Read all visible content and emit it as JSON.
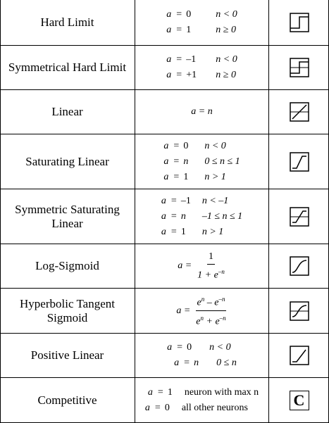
{
  "rows": [
    {
      "name": "Hard Limit",
      "lines": [
        [
          "a",
          "=",
          "0",
          "n < 0"
        ],
        [
          "a",
          "=",
          "1",
          "n ≥ 0"
        ]
      ],
      "icon": "hard-limit-icon"
    },
    {
      "name": "Symmetrical Hard Limit",
      "lines": [
        [
          "a",
          "=",
          "–1",
          "n < 0"
        ],
        [
          "a",
          "=",
          "+1",
          "n ≥ 0"
        ]
      ],
      "icon": "symmetrical-hard-limit-icon"
    },
    {
      "name": "Linear",
      "formula": "a = n",
      "icon": "linear-icon"
    },
    {
      "name": "Saturating Linear",
      "lines": [
        [
          "a",
          "=",
          "0",
          "n < 0"
        ],
        [
          "a",
          "=",
          "n",
          "0 ≤ n ≤ 1"
        ],
        [
          "a",
          "=",
          "1",
          "n > 1"
        ]
      ],
      "icon": "saturating-linear-icon"
    },
    {
      "name": "Symmetric Saturating Linear",
      "lines": [
        [
          "a",
          "=",
          "–1",
          "n < –1"
        ],
        [
          "a",
          "=",
          "n",
          "–1 ≤ n ≤ 1"
        ],
        [
          "a",
          "=",
          "1",
          "n > 1"
        ]
      ],
      "icon": "symmetric-saturating-linear-icon"
    },
    {
      "name": "Log-Sigmoid",
      "lhs": "a =",
      "num": "1",
      "den": "1 + e",
      "den_sup": "–n",
      "icon": "log-sigmoid-icon"
    },
    {
      "name": "Hyperbolic Tangent Sigmoid",
      "lhs": "a =",
      "num_a": "e",
      "num_a_sup": "n",
      "num_mid": " – e",
      "num_b_sup": "–n",
      "den_a": "e",
      "den_a_sup": "n",
      "den_mid": " + e",
      "den_b_sup": "–n",
      "icon": "hyperbolic-tangent-sigmoid-icon"
    },
    {
      "name": "Positive Linear",
      "lines": [
        [
          "a",
          "=",
          "0",
          "n < 0"
        ],
        [
          "a",
          "=",
          "n",
          "0 ≤ n"
        ]
      ],
      "icon": "positive-linear-icon"
    },
    {
      "name": "Competitive",
      "comp": [
        [
          "a",
          "=",
          "1",
          "neuron with max n"
        ],
        [
          "a",
          "=",
          "0",
          "all other neurons"
        ]
      ],
      "icon": "competitive-icon",
      "icon_text": "C"
    }
  ]
}
